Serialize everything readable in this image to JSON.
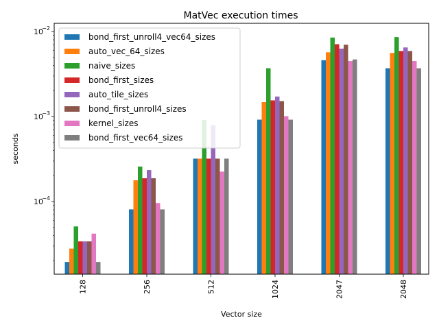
{
  "chart_data": {
    "type": "bar",
    "title": "MatVec execution times",
    "xlabel": "Vector size",
    "ylabel": "seconds",
    "yscale": "log",
    "ylim": [
      1.4e-05,
      0.0125
    ],
    "yticks": [
      {
        "value": 0.0001,
        "base": "10",
        "exp": "−4"
      },
      {
        "value": 0.001,
        "base": "10",
        "exp": "−3"
      },
      {
        "value": 0.01,
        "base": "10",
        "exp": "−2"
      }
    ],
    "legend_position": "upper-left",
    "grid": false,
    "categories": [
      "128",
      "256",
      "512",
      "1024",
      "2047",
      "2048"
    ],
    "series": [
      {
        "name": "bond_first_unroll4_vec64_sizes",
        "color": "#1f77b4",
        "values": [
          1.95e-05,
          8.1e-05,
          0.00032,
          0.00092,
          0.0046,
          0.0037
        ]
      },
      {
        "name": "auto_vec_64_sizes",
        "color": "#ff7f0e",
        "values": [
          2.8e-05,
          0.000178,
          0.00032,
          0.00148,
          0.0057,
          0.0056
        ]
      },
      {
        "name": "naive_sizes",
        "color": "#2ca02c",
        "values": [
          5.1e-05,
          0.000258,
          0.00091,
          0.0037,
          0.0085,
          0.0086
        ]
      },
      {
        "name": "bond_first_sizes",
        "color": "#d62728",
        "values": [
          3.4e-05,
          0.000188,
          0.00032,
          0.00155,
          0.0071,
          0.0059
        ]
      },
      {
        "name": "auto_tile_sizes",
        "color": "#9467bd",
        "values": [
          3.4e-05,
          0.000235,
          0.00079,
          0.00172,
          0.0063,
          0.0065
        ]
      },
      {
        "name": "bond_first_unroll4_sizes",
        "color": "#8c564b",
        "values": [
          3.4e-05,
          0.000188,
          0.00032,
          0.00152,
          0.007,
          0.0059
        ]
      },
      {
        "name": "kernel_sizes",
        "color": "#e377c2",
        "values": [
          4.2e-05,
          9.6e-05,
          0.000225,
          0.00101,
          0.0045,
          0.0045
        ]
      },
      {
        "name": "bond_first_vec64_sizes",
        "color": "#7f7f7f",
        "values": [
          1.95e-05,
          8.1e-05,
          0.00032,
          0.00092,
          0.0047,
          0.0037
        ]
      }
    ]
  }
}
